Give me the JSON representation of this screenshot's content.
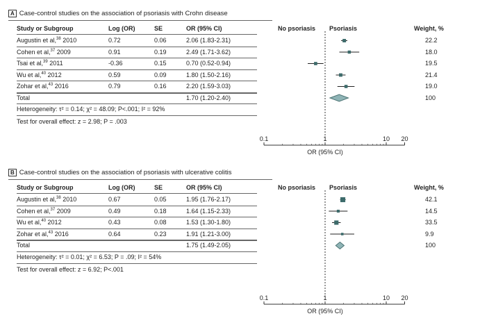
{
  "panels": [
    {
      "letter": "A",
      "caption": "Case-control studies on the association of psoriasis with Crohn disease",
      "headers": {
        "study": "Study or Subgroup",
        "log": "Log (OR)",
        "se": "SE",
        "orci": "OR (95% CI)",
        "no_psoriasis": "No psoriasis",
        "psoriasis": "Psoriasis",
        "weight": "Weight, %"
      },
      "studies": [
        {
          "name": "Augustin et al,",
          "ref": "38",
          "year": " 2010",
          "log": "0.72",
          "se": "0.06",
          "orci": "2.06 (1.83-2.31)",
          "or": 2.06,
          "lo": 1.83,
          "hi": 2.31,
          "weight": "22.2"
        },
        {
          "name": "Cohen et al,",
          "ref": "37",
          "year": " 2009",
          "log": "0.91",
          "se": "0.19",
          "orci": "2.49 (1.71-3.62)",
          "or": 2.49,
          "lo": 1.71,
          "hi": 3.62,
          "weight": "18.0"
        },
        {
          "name": "Tsai et al,",
          "ref": "39",
          "year": " 2011",
          "log": "-0.36",
          "se": "0.15",
          "orci": "0.70 (0.52-0.94)",
          "or": 0.7,
          "lo": 0.52,
          "hi": 0.94,
          "weight": "19.5"
        },
        {
          "name": "Wu et al,",
          "ref": "40",
          "year": " 2012",
          "log": "0.59",
          "se": "0.09",
          "orci": "1.80 (1.50-2.16)",
          "or": 1.8,
          "lo": 1.5,
          "hi": 2.16,
          "weight": "21.4"
        },
        {
          "name": "Zohar et al,",
          "ref": "43",
          "year": " 2016",
          "log": "0.79",
          "se": "0.16",
          "orci": "2.20 (1.59-3.03)",
          "or": 2.2,
          "lo": 1.59,
          "hi": 3.03,
          "weight": "19.0"
        }
      ],
      "total": {
        "label": "Total",
        "orci": "1.70 (1.20-2.40)",
        "or": 1.7,
        "lo": 1.2,
        "hi": 2.4,
        "weight": "100"
      },
      "heterogeneity": "Heterogeneity: τ² = 0.14; χ² = 48.09; P<.001; I² = 92%",
      "overall": "Test for overall effect: z = 2.98; P = .003",
      "axis": {
        "ticks": [
          "0.1",
          "1",
          "10",
          "20"
        ],
        "label": "OR (95% CI)"
      }
    },
    {
      "letter": "B",
      "caption": "Case-control studies on the association of psoriasis with ulcerative colitis",
      "headers": {
        "study": "Study or Subgroup",
        "log": "Log (OR)",
        "se": "SE",
        "orci": "OR (95% CI)",
        "no_psoriasis": "No psoriasis",
        "psoriasis": "Psoriasis",
        "weight": "Weight, %"
      },
      "studies": [
        {
          "name": "Augustin et al,",
          "ref": "38",
          "year": " 2010",
          "log": "0.67",
          "se": "0.05",
          "orci": "1.95 (1.76-2.17)",
          "or": 1.95,
          "lo": 1.76,
          "hi": 2.17,
          "weight": "42.1"
        },
        {
          "name": "Cohen et al,",
          "ref": "37",
          "year": " 2009",
          "log": "0.49",
          "se": "0.18",
          "orci": "1.64 (1.15-2.33)",
          "or": 1.64,
          "lo": 1.15,
          "hi": 2.33,
          "weight": "14.5"
        },
        {
          "name": "Wu et al,",
          "ref": "40",
          "year": " 2012",
          "log": "0.43",
          "se": "0.08",
          "orci": "1.53 (1.30-1.80)",
          "or": 1.53,
          "lo": 1.3,
          "hi": 1.8,
          "weight": "33.5"
        },
        {
          "name": "Zohar et al,",
          "ref": "43",
          "year": " 2016",
          "log": "0.64",
          "se": "0.23",
          "orci": "1.91 (1.21-3.00)",
          "or": 1.91,
          "lo": 1.21,
          "hi": 3.0,
          "weight": "9.9"
        }
      ],
      "total": {
        "label": "Total",
        "orci": "1.75 (1.49-2.05)",
        "or": 1.75,
        "lo": 1.49,
        "hi": 2.05,
        "weight": "100"
      },
      "heterogeneity": "Heterogeneity: τ² = 0.01; χ² = 6.53; P = .09; I² = 54%",
      "overall": "Test for overall effect: z = 6.92; P<.001",
      "axis": {
        "ticks": [
          "0.1",
          "1",
          "10",
          "20"
        ],
        "label": "OR (95% CI)"
      }
    }
  ],
  "chart_data": [
    {
      "type": "forest",
      "title": "Case-control studies on the association of psoriasis with Crohn disease",
      "xlabel": "OR (95% CI)",
      "xscale": "log",
      "xlim": [
        0.1,
        20
      ],
      "xticks": [
        0.1,
        1,
        10,
        20
      ],
      "reference_line": 1,
      "categories": [
        "Augustin et al, 2010",
        "Cohen et al, 2009",
        "Tsai et al, 2011",
        "Wu et al, 2012",
        "Zohar et al, 2016",
        "Total"
      ],
      "values": [
        2.06,
        2.49,
        0.7,
        1.8,
        2.2,
        1.7
      ],
      "ci_lower": [
        1.83,
        1.71,
        0.52,
        1.5,
        1.59,
        1.2
      ],
      "ci_upper": [
        2.31,
        3.62,
        0.94,
        2.16,
        3.03,
        2.4
      ],
      "weights": [
        22.2,
        18.0,
        19.5,
        21.4,
        19.0,
        100
      ]
    },
    {
      "type": "forest",
      "title": "Case-control studies on the association of psoriasis with ulcerative colitis",
      "xlabel": "OR (95% CI)",
      "xscale": "log",
      "xlim": [
        0.1,
        20
      ],
      "xticks": [
        0.1,
        1,
        10,
        20
      ],
      "reference_line": 1,
      "categories": [
        "Augustin et al, 2010",
        "Cohen et al, 2009",
        "Wu et al, 2012",
        "Zohar et al, 2016",
        "Total"
      ],
      "values": [
        1.95,
        1.64,
        1.53,
        1.91,
        1.75
      ],
      "ci_lower": [
        1.76,
        1.15,
        1.3,
        1.21,
        1.49
      ],
      "ci_upper": [
        2.17,
        2.33,
        1.8,
        3.0,
        2.05
      ],
      "weights": [
        42.1,
        14.5,
        33.5,
        9.9,
        100
      ]
    }
  ],
  "colors": {
    "marker": "#3d6b6b",
    "diamond_fill": "#8fb4b6",
    "diamond_stroke": "#4d7474",
    "line": "#222222",
    "rule": "#666666"
  }
}
